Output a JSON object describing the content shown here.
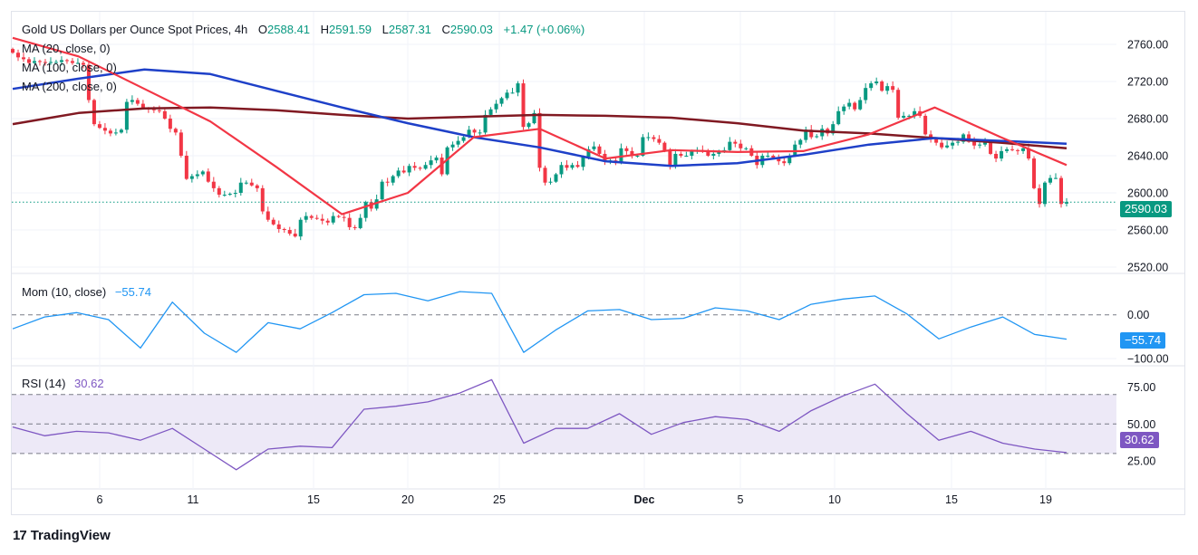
{
  "header": {
    "title": "Gold US Dollars per Ounce Spot Prices, 4h",
    "open_label": "O",
    "open": "2588.41",
    "high_label": "H",
    "high": "2591.59",
    "low_label": "L",
    "low": "2587.31",
    "close_label": "C",
    "close": "2590.03",
    "change": "+1.47 (+0.06%)"
  },
  "ma_labels": [
    "MA (20, close, 0)",
    "MA (100, close, 0)",
    "MA (200, close, 0)"
  ],
  "colors": {
    "up": "#089981",
    "down": "#f23645",
    "ma20": "#f23645",
    "ma100": "#1e40c8",
    "ma200": "#801922",
    "mom": "#2196f3",
    "rsi": "#7e57c2",
    "rsi_band": "#ede9f7",
    "grid": "#f0f3fa"
  },
  "price_axis": [
    "2760.00",
    "2720.00",
    "2680.00",
    "2640.00",
    "2600.00",
    "2560.00",
    "2520.00"
  ],
  "price_tag": "2590.03",
  "time_axis": [
    "6",
    "11",
    "15",
    "20",
    "25",
    "Dec",
    "5",
    "10",
    "15",
    "19"
  ],
  "momentum": {
    "title": "Mom (10, close)",
    "value": "−55.74",
    "axis": [
      "0.00",
      "−100.00"
    ],
    "tag": "−55.74"
  },
  "rsi": {
    "title": "RSI (14)",
    "value": "30.62",
    "axis": [
      "75.00",
      "50.00",
      "25.00"
    ],
    "tag": "30.62"
  },
  "footer": {
    "brand": "TradingView",
    "logo": "17"
  },
  "chart_data": {
    "type": "candlestick",
    "timeframe": "4h",
    "ylim": [
      2520,
      2770
    ],
    "last_open": 2588.41,
    "closes": [
      2751,
      2746,
      2744,
      2740,
      2742,
      2741,
      2740,
      2741,
      2741,
      2743,
      2742,
      2740,
      2740,
      2738,
      2700,
      2674,
      2670,
      2667,
      2664,
      2665,
      2668,
      2698,
      2700,
      2696,
      2691,
      2690,
      2689,
      2688,
      2680,
      2669,
      2665,
      2640,
      2615,
      2618,
      2620,
      2623,
      2612,
      2605,
      2598,
      2598,
      2599,
      2600,
      2611,
      2611,
      2608,
      2605,
      2580,
      2571,
      2566,
      2561,
      2560,
      2556,
      2553,
      2571,
      2575,
      2573,
      2572,
      2570,
      2568,
      2575,
      2574,
      2573,
      2563,
      2562,
      2573,
      2590,
      2583,
      2593,
      2612,
      2611,
      2618,
      2624,
      2622,
      2629,
      2627,
      2626,
      2630,
      2635,
      2638,
      2620,
      2649,
      2652,
      2656,
      2660,
      2668,
      2665,
      2665,
      2684,
      2690,
      2696,
      2702,
      2708,
      2708,
      2718,
      2671,
      2675,
      2686,
      2627,
      2611,
      2612,
      2620,
      2630,
      2627,
      2630,
      2628,
      2639,
      2647,
      2650,
      2642,
      2634,
      2635,
      2632,
      2648,
      2645,
      2640,
      2640,
      2660,
      2660,
      2658,
      2654,
      2645,
      2629,
      2642,
      2640,
      2640,
      2645,
      2646,
      2645,
      2640,
      2642,
      2645,
      2646,
      2655,
      2653,
      2648,
      2648,
      2640,
      2630,
      2640,
      2640,
      2638,
      2634,
      2632,
      2640,
      2652,
      2657,
      2668,
      2660,
      2661,
      2669,
      2664,
      2674,
      2688,
      2693,
      2697,
      2690,
      2700,
      2713,
      2718,
      2720,
      2710,
      2715,
      2711,
      2681,
      2683,
      2683,
      2688,
      2683,
      2663,
      2658,
      2654,
      2649,
      2651,
      2654,
      2655,
      2663,
      2655,
      2651,
      2652,
      2655,
      2642,
      2637,
      2645,
      2647,
      2646,
      2645,
      2648,
      2637,
      2605,
      2588,
      2611,
      2616,
      2616,
      2588,
      2590.03
    ],
    "ma20": [
      2767,
      2747,
      2712,
      2677,
      2628,
      2577,
      2600,
      2660,
      2669,
      2637,
      2646,
      2644,
      2645,
      2663,
      2692,
      2660,
      2630
    ],
    "ma100": [
      2712,
      2723,
      2733,
      2728,
      2710,
      2692,
      2675,
      2660,
      2649,
      2634,
      2629,
      2632,
      2641,
      2652,
      2659,
      2656,
      2653
    ],
    "ma200": [
      2674,
      2686,
      2691,
      2692,
      2689,
      2684,
      2680,
      2682,
      2684,
      2683,
      2681,
      2675,
      2667,
      2664,
      2659,
      2654,
      2648
    ],
    "momentum": [
      -32,
      -5,
      5,
      -11,
      -76,
      29,
      -42,
      -86,
      -18,
      -32,
      5,
      46,
      49,
      32,
      53,
      49,
      -86,
      -35,
      9,
      12,
      -11,
      -8,
      16,
      9,
      -11,
      24,
      36,
      43,
      2,
      -55,
      -28,
      -5,
      -45,
      -55.74
    ],
    "momentum_ylim": [
      -110,
      110
    ],
    "rsi_values": [
      48,
      42,
      45,
      44,
      39,
      47,
      33,
      19,
      33,
      35,
      34,
      60,
      62,
      65,
      71,
      80,
      37,
      47,
      47,
      57,
      43,
      51,
      55,
      53,
      45,
      59,
      69,
      77,
      57,
      39,
      45,
      37,
      33,
      30.62
    ],
    "rsi_levels": [
      70,
      50,
      30
    ]
  }
}
